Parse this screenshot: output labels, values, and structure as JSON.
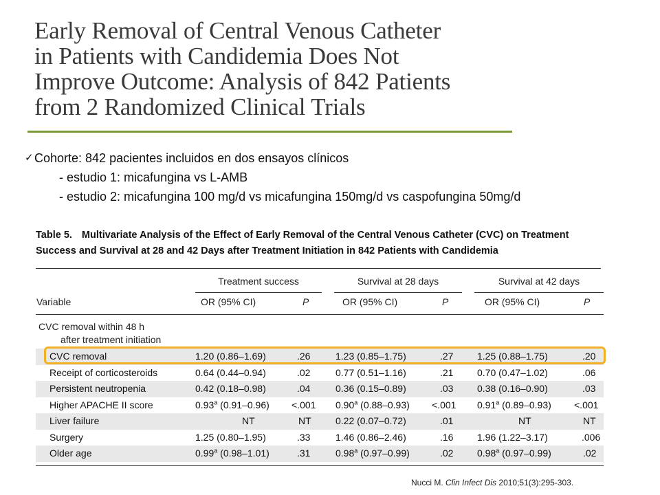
{
  "slide": {
    "title_lines": [
      "Early Removal of Central Venous Catheter",
      "in Patients with Candidemia Does Not",
      "Improve Outcome: Analysis of 842 Patients",
      "from 2 Randomized Clinical Trials"
    ],
    "bullet": "Cohorte: 842 pacientes incluidos en dos ensayos clínicos",
    "sub_bullets": [
      "- estudio 1: micafungina vs L-AMB",
      "- estudio 2: micafungina 100 mg/d vs micafungina 150mg/d vs caspofungina 50mg/d"
    ]
  },
  "table": {
    "label": "Table 5.",
    "caption": "Multivariate Analysis of the Effect of Early Removal of the Central Venous Catheter (CVC) on Treatment Success and Survival at 28 and 42 Days after Treatment Initiation in 842 Patients with Candidemia",
    "groups": [
      "Treatment success",
      "Survival at 28 days",
      "Survival at 42 days"
    ],
    "headers": {
      "variable": "Variable",
      "or": "OR (95% CI)",
      "p": "P"
    },
    "section_label_1": "CVC removal within 48 h",
    "section_label_2": "after treatment initiation",
    "rows": [
      {
        "variable": "CVC removal",
        "c1": "1.20 (0.86–1.69)",
        "p1": ".26",
        "c2": "1.23 (0.85–1.75)",
        "p2": ".27",
        "c3": "1.25 (0.88–1.75)",
        "p3": ".20",
        "shade": true
      },
      {
        "variable": "Receipt of corticosteroids",
        "c1": "0.64 (0.44–0.94)",
        "p1": ".02",
        "c2": "0.77 (0.51–1.16)",
        "p2": ".21",
        "c3": "0.70 (0.47–1.02)",
        "p3": ".06",
        "shade": false
      },
      {
        "variable": "Persistent neutropenia",
        "c1": "0.42 (0.18–0.98)",
        "p1": ".04",
        "c2": "0.36 (0.15–0.89)",
        "p2": ".03",
        "c3": "0.38 (0.16–0.90)",
        "p3": ".03",
        "shade": true
      },
      {
        "variable": "Higher APACHE II score",
        "c1a": "0.93",
        "c1b": "(0.91–0.96)",
        "p1": "<.001",
        "c2a": "0.90",
        "c2b": "(0.88–0.93)",
        "p2": "<.001",
        "c3a": "0.91",
        "c3b": "(0.89–0.93)",
        "p3": "<.001",
        "sup": "a",
        "shade": false
      },
      {
        "variable": "Liver failure",
        "c1": "NT",
        "p1": "NT",
        "c2": "0.22 (0.07–0.72)",
        "p2": ".01",
        "c3": "NT",
        "p3": "NT",
        "shade": true
      },
      {
        "variable": "Surgery",
        "c1": "1.25 (0.80–1.95)",
        "p1": ".33",
        "c2": "1.46 (0.86–2.46)",
        "p2": ".16",
        "c3": "1.96 (1.22–3.17)",
        "p3": ".006",
        "shade": false
      },
      {
        "variable": "Older age",
        "c1a": "0.99",
        "c1b": "(0.98–1.01)",
        "p1": ".31",
        "c2a": "0.98",
        "c2b": "(0.97–0.99)",
        "p2": ".02",
        "c3a": "0.98",
        "c3b": "(0.97–0.99)",
        "p3": ".02",
        "sup": "a",
        "shade": true
      }
    ]
  },
  "citation": {
    "author": "Nucci M.",
    "journal": "Clin Infect Dis",
    "details": "2010;51(3):295-303."
  },
  "colors": {
    "title_rule": "#7f9a3a",
    "highlight": "#f2b024",
    "row_shade": "#e8e8e8"
  }
}
